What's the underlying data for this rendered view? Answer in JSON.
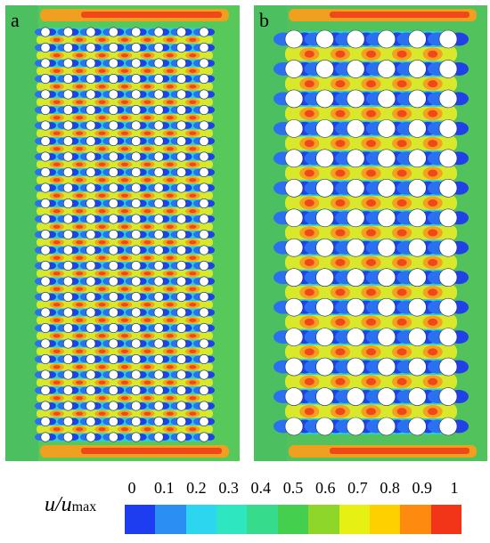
{
  "panels": [
    {
      "label": "a",
      "cylinder_columns": 8,
      "cylinder_rows": 27,
      "background": "#56c95a"
    },
    {
      "label": "b",
      "cylinder_columns": 6,
      "cylinder_rows": 14,
      "background": "#52c35c"
    }
  ],
  "colorbar": {
    "title_var": "u",
    "title_sep": "/",
    "title_var2": "u",
    "title_sub": "max",
    "ticks": [
      "0",
      "0.1",
      "0.2",
      "0.3",
      "0.4",
      "0.5",
      "0.6",
      "0.7",
      "0.8",
      "0.9",
      "1"
    ],
    "colors": [
      "#1e3cf0",
      "#2a8ef2",
      "#2cd6ee",
      "#2ee6c0",
      "#36dc8c",
      "#44d04e",
      "#8ed62a",
      "#e6f012",
      "#ffd000",
      "#ff8a10",
      "#f23418"
    ]
  }
}
